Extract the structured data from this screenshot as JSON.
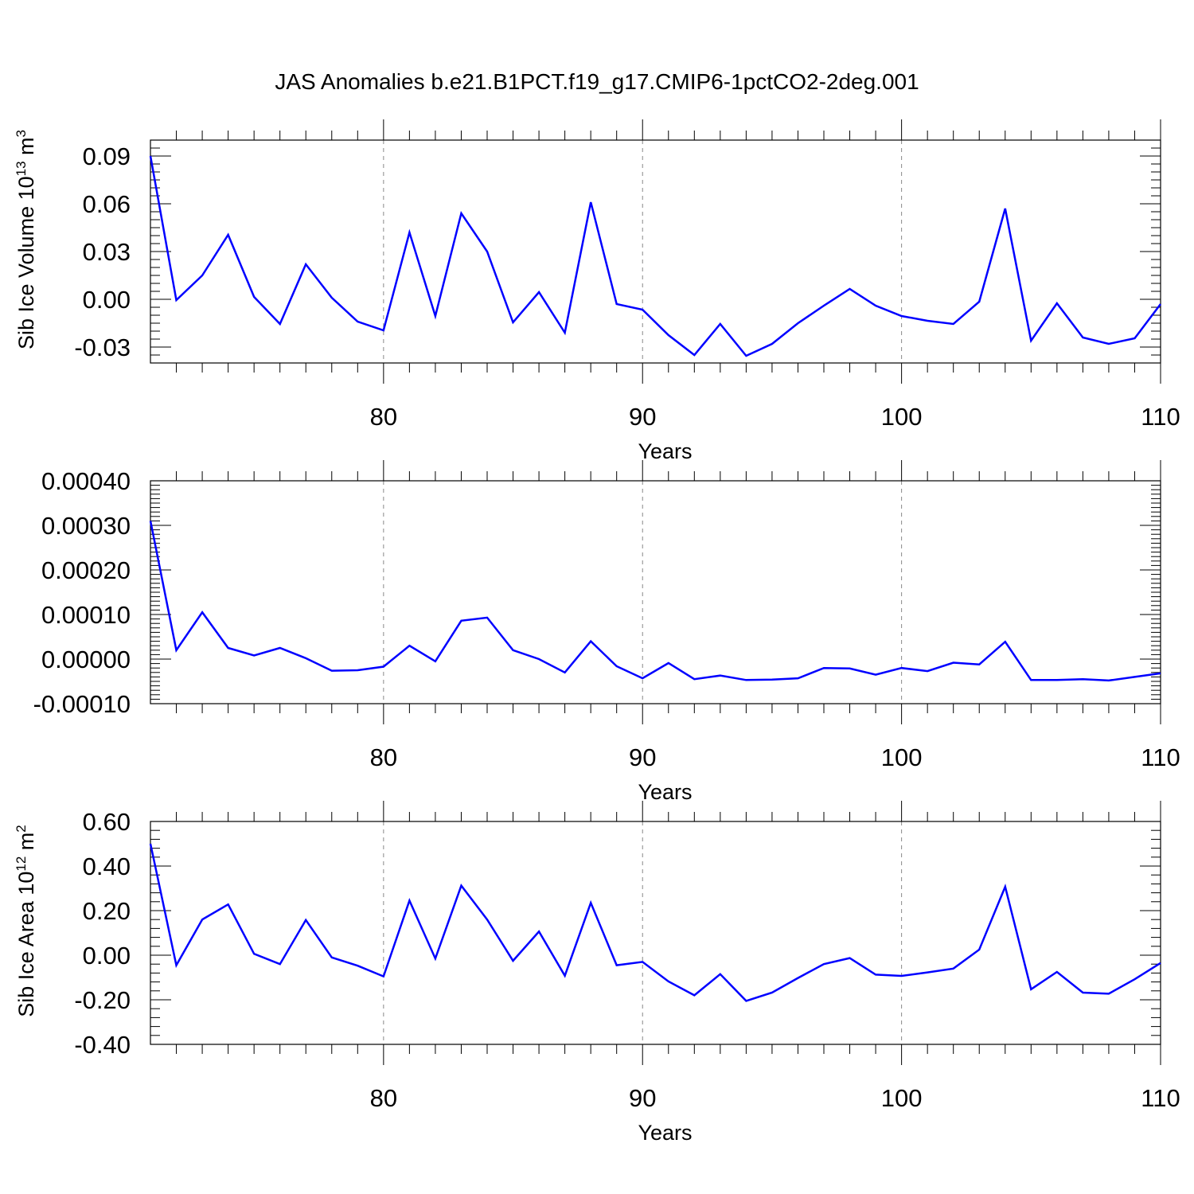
{
  "title": "JAS Anomalies b.e21.B1PCT.f19_g17.CMIP6-1pctCO2-2deg.001",
  "line_color": "#0000ff",
  "chart_data": [
    {
      "type": "line",
      "title": "JAS Anomalies b.e21.B1PCT.f19_g17.CMIP6-1pctCO2-2deg.001",
      "xlabel": "Years",
      "ylabel": "Sib Ice Volume 10",
      "ylabel_exp": "13",
      "ylabel_unit": " m",
      "ylabel_unit_exp": "3",
      "xlim": [
        71,
        110
      ],
      "ylim": [
        -0.04,
        0.1
      ],
      "xticks": [
        80,
        90,
        100,
        110
      ],
      "xtick_labels": [
        "80",
        "90",
        "100",
        "110"
      ],
      "yticks": [
        -0.03,
        0.0,
        0.03,
        0.06,
        0.09
      ],
      "ytick_labels": [
        "-0.03",
        "0.00",
        "0.03",
        "0.06",
        "0.09"
      ],
      "grid": "dashed vertical lines at major x ticks",
      "x": [
        71,
        72,
        73,
        74,
        75,
        76,
        77,
        78,
        79,
        80,
        81,
        82,
        83,
        84,
        85,
        86,
        87,
        88,
        89,
        90,
        91,
        92,
        93,
        94,
        95,
        96,
        97,
        98,
        99,
        100,
        101,
        102,
        103,
        104,
        105,
        106,
        107,
        108,
        109,
        110
      ],
      "series": [
        {
          "values": [
            0.09,
            -0.0005,
            0.015,
            0.0405,
            0.0015,
            -0.0155,
            0.022,
            0.001,
            -0.014,
            -0.0195,
            0.042,
            -0.0105,
            0.054,
            0.03,
            -0.0145,
            0.0045,
            -0.021,
            0.061,
            -0.003,
            -0.0065,
            -0.0225,
            -0.035,
            -0.0155,
            -0.0355,
            -0.028,
            -0.015,
            -0.004,
            0.0065,
            -0.004,
            -0.0105,
            -0.0135,
            -0.0155,
            -0.0015,
            0.057,
            -0.026,
            -0.0025,
            -0.024,
            -0.028,
            -0.0245,
            -0.003
          ]
        }
      ]
    },
    {
      "type": "line",
      "xlabel": "Years",
      "ylabel": "",
      "xlim": [
        71,
        110
      ],
      "ylim": [
        -0.0001,
        0.0004
      ],
      "xticks": [
        80,
        90,
        100,
        110
      ],
      "xtick_labels": [
        "80",
        "90",
        "100",
        "110"
      ],
      "yticks": [
        -0.0001,
        0.0,
        0.0001,
        0.0002,
        0.0003,
        0.0004
      ],
      "ytick_labels": [
        "-0.00010",
        "0.00000",
        "0.00010",
        "0.00020",
        "0.00030",
        "0.00040"
      ],
      "grid": "dashed vertical lines at major x ticks",
      "x": [
        71,
        72,
        73,
        74,
        75,
        76,
        77,
        78,
        79,
        80,
        81,
        82,
        83,
        84,
        85,
        86,
        87,
        88,
        89,
        90,
        91,
        92,
        93,
        94,
        95,
        96,
        97,
        98,
        99,
        100,
        101,
        102,
        103,
        104,
        105,
        106,
        107,
        108,
        109,
        110
      ],
      "series": [
        {
          "values": [
            0.00031,
            2e-05,
            0.000105,
            2.5e-05,
            8e-06,
            2.5e-05,
            2e-06,
            -2.6e-05,
            -2.5e-05,
            -1.7e-05,
            3e-05,
            -5e-06,
            8.6e-05,
            9.3e-05,
            2e-05,
            0.0,
            -3e-05,
            4e-05,
            -1.6e-05,
            -4.3e-05,
            -9e-06,
            -4.5e-05,
            -3.7e-05,
            -4.7e-05,
            -4.6e-05,
            -4.3e-05,
            -2e-05,
            -2.1e-05,
            -3.5e-05,
            -2e-05,
            -2.7e-05,
            -8e-06,
            -1.2e-05,
            3.9e-05,
            -4.7e-05,
            -4.7e-05,
            -4.5e-05,
            -4.8e-05,
            -4e-05,
            -3.2e-05
          ]
        }
      ]
    },
    {
      "type": "line",
      "xlabel": "Years",
      "ylabel": "Sib Ice Area 10",
      "ylabel_exp": "12",
      "ylabel_unit": " m",
      "ylabel_unit_exp": "2",
      "xlim": [
        71,
        110
      ],
      "ylim": [
        -0.4,
        0.6
      ],
      "xticks": [
        80,
        90,
        100,
        110
      ],
      "xtick_labels": [
        "80",
        "90",
        "100",
        "110"
      ],
      "yticks": [
        -0.4,
        -0.2,
        0.0,
        0.2,
        0.4,
        0.6
      ],
      "ytick_labels": [
        "-0.40",
        "-0.20",
        "0.00",
        "0.20",
        "0.40",
        "0.60"
      ],
      "grid": "dashed vertical lines at major x ticks",
      "x": [
        71,
        72,
        73,
        74,
        75,
        76,
        77,
        78,
        79,
        80,
        81,
        82,
        83,
        84,
        85,
        86,
        87,
        88,
        89,
        90,
        91,
        92,
        93,
        94,
        95,
        96,
        97,
        98,
        99,
        100,
        101,
        102,
        103,
        104,
        105,
        106,
        107,
        108,
        109,
        110
      ],
      "series": [
        {
          "values": [
            0.5,
            -0.045,
            0.16,
            0.228,
            0.006,
            -0.04,
            0.158,
            -0.01,
            -0.047,
            -0.095,
            0.245,
            -0.015,
            0.312,
            0.16,
            -0.025,
            0.106,
            -0.092,
            0.235,
            -0.045,
            -0.03,
            -0.118,
            -0.18,
            -0.085,
            -0.205,
            -0.168,
            -0.102,
            -0.04,
            -0.013,
            -0.087,
            -0.093,
            -0.077,
            -0.06,
            0.025,
            0.307,
            -0.153,
            -0.075,
            -0.168,
            -0.173,
            -0.108,
            -0.035
          ]
        }
      ]
    }
  ]
}
